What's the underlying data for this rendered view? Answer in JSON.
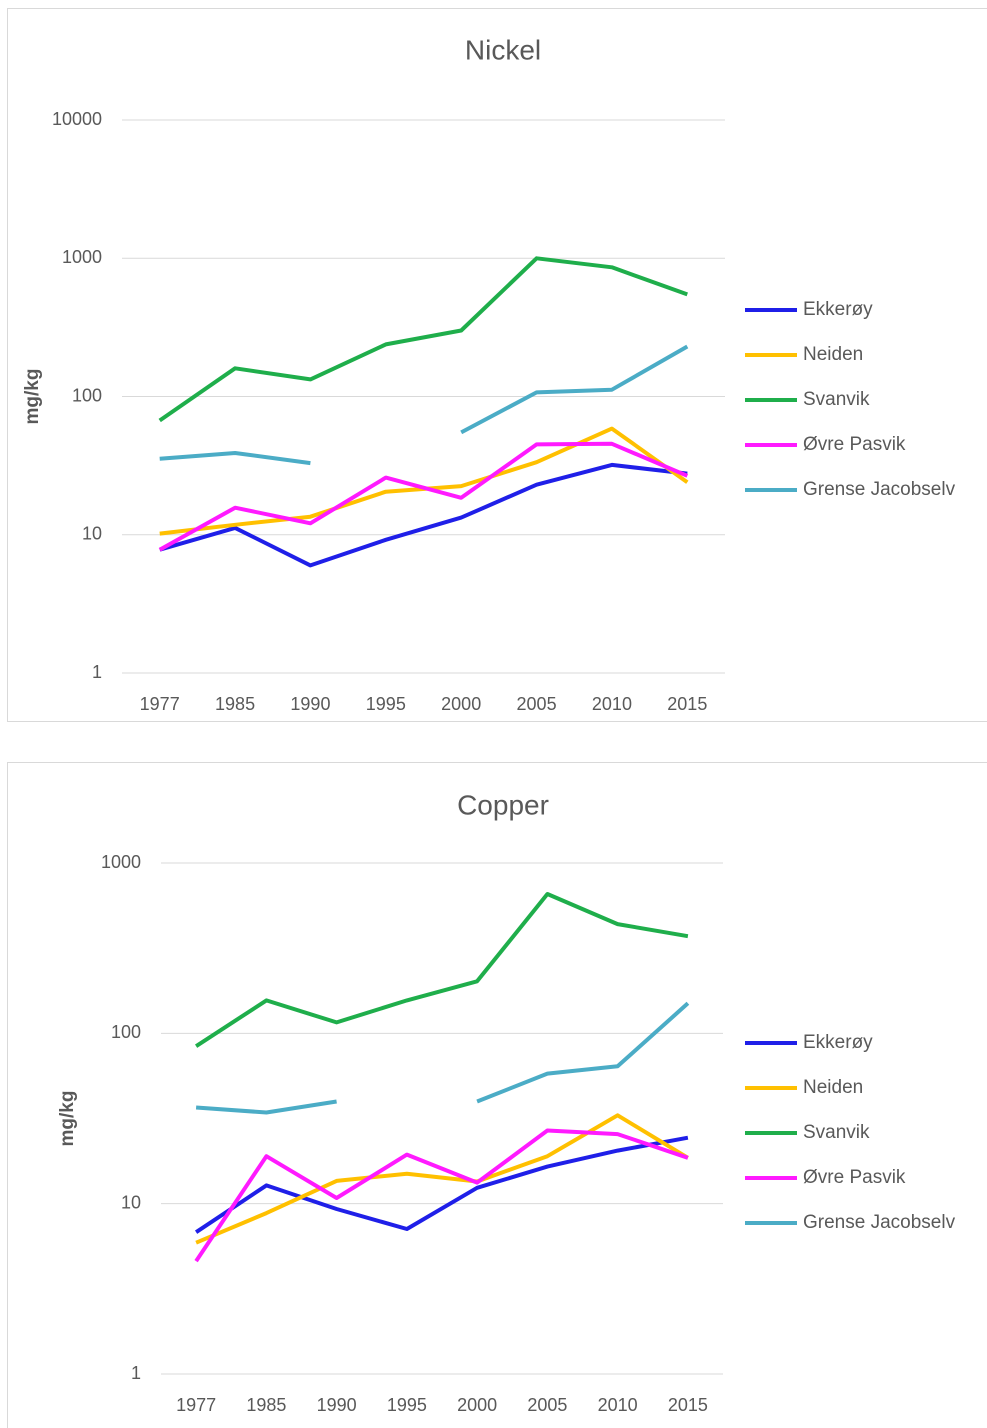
{
  "chart_data": [
    {
      "type": "line",
      "title": "Nickel",
      "y_label": "mg/kg",
      "log_scale": true,
      "grid": true,
      "legend": "right",
      "categories": [
        "1977",
        "1985",
        "1990",
        "1995",
        "2000",
        "2005",
        "2010",
        "2015"
      ],
      "ylim": [
        1,
        10000
      ],
      "yticks": [
        1,
        10,
        100,
        1000,
        10000
      ],
      "series": [
        {
          "name": "Ekkerøy",
          "color": "#1f1fe8",
          "values": [
            7.8,
            11.2,
            6,
            9.2,
            13.3,
            23,
            32,
            27.7
          ]
        },
        {
          "name": "Neiden",
          "color": "#ffc000",
          "values": [
            10.2,
            11.8,
            13.5,
            20.5,
            22.5,
            33.5,
            58.6,
            24
          ]
        },
        {
          "name": "Svanvik",
          "color": "#1fae4b",
          "values": [
            67,
            160,
            133,
            238,
            300,
            1000,
            860,
            548
          ]
        },
        {
          "name": "Øvre Pasvik",
          "color": "#ff1aff",
          "values": [
            7.8,
            15.7,
            12.1,
            25.9,
            18.5,
            45,
            45.5,
            26.7
          ]
        },
        {
          "name": "Grense Jacobselv",
          "color": "#4bacc6",
          "values": [
            35.5,
            39,
            33,
            null,
            55,
            107,
            112,
            230
          ]
        }
      ]
    },
    {
      "type": "line",
      "title": "Copper",
      "y_label": "mg/kg",
      "log_scale": true,
      "grid": true,
      "legend": "right",
      "categories": [
        "1977",
        "1985",
        "1990",
        "1995",
        "2000",
        "2005",
        "2010",
        "2015"
      ],
      "ylim": [
        1,
        1000
      ],
      "yticks": [
        1,
        10,
        100,
        1000
      ],
      "series": [
        {
          "name": "Ekkerøy",
          "color": "#1f1fe8",
          "values": [
            6.8,
            12.8,
            9.3,
            7.1,
            12.4,
            16.5,
            20.5,
            24.4
          ]
        },
        {
          "name": "Neiden",
          "color": "#ffc000",
          "values": [
            5.9,
            8.8,
            13.6,
            15,
            13.5,
            19,
            33,
            18.6
          ]
        },
        {
          "name": "Svanvik",
          "color": "#1fae4b",
          "values": [
            84,
            156,
            116,
            156,
            202,
            658,
            438,
            372
          ]
        },
        {
          "name": "Øvre Pasvik",
          "color": "#ff1aff",
          "values": [
            4.6,
            19,
            10.8,
            19.4,
            13.3,
            26.9,
            25.6,
            18.6
          ]
        },
        {
          "name": "Grense Jacobselv",
          "color": "#4bacc6",
          "values": [
            36.7,
            34.3,
            39.8,
            null,
            39.8,
            58,
            64,
            150
          ]
        }
      ]
    }
  ]
}
